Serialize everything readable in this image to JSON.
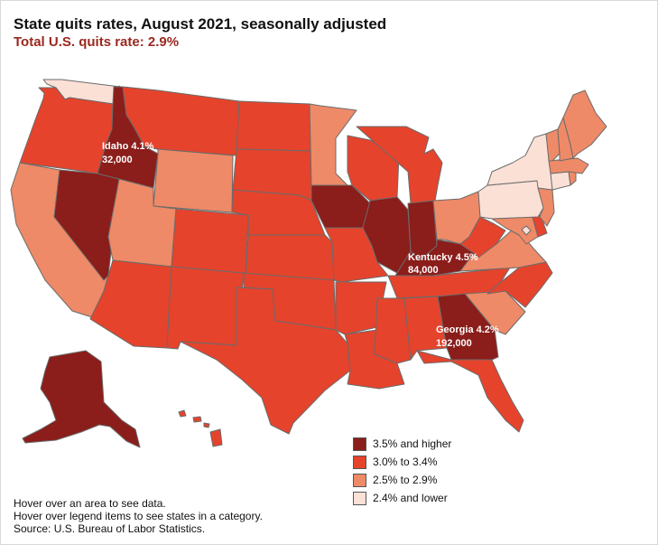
{
  "title": "State quits rates, August 2021, seasonally adjusted",
  "subtitle": "Total U.S. quits rate: 2.9%",
  "colors": {
    "high": "#8b1d1a",
    "mid_high": "#e5432c",
    "mid_low": "#ee8a67",
    "low": "#fbe0d6",
    "subtitle": "#9b2820"
  },
  "callouts": [
    {
      "state": "Idaho",
      "line1": "Idaho  4.1%",
      "line2": "32,000"
    },
    {
      "state": "Kentucky",
      "line1": "Kentucky 4.5%",
      "line2": "84,000"
    },
    {
      "state": "Georgia",
      "line1": "Georgia 4.2%",
      "line2": "192,000"
    }
  ],
  "legend": [
    {
      "label": "3.5% and higher",
      "color_key": "high"
    },
    {
      "label": "3.0% to 3.4%",
      "color_key": "mid_high"
    },
    {
      "label": "2.5% to 2.9%",
      "color_key": "mid_low"
    },
    {
      "label": "2.4% and lower",
      "color_key": "low"
    }
  ],
  "notes": [
    "Hover over an area to see data.",
    "Hover over legend items to see states in a category.",
    "Source: U.S. Bureau of Labor Statistics."
  ],
  "state_categories": {
    "Washington": "low",
    "Oregon": "mid_high",
    "California": "mid_low",
    "Nevada": "high",
    "Idaho": "high",
    "Montana": "mid_high",
    "Wyoming": "mid_low",
    "Utah": "mid_low",
    "Arizona": "mid_high",
    "Colorado": "mid_high",
    "New Mexico": "mid_high",
    "North Dakota": "mid_high",
    "South Dakota": "mid_high",
    "Nebraska": "mid_high",
    "Kansas": "mid_high",
    "Oklahoma": "mid_high",
    "Texas": "mid_high",
    "Minnesota": "mid_low",
    "Iowa": "high",
    "Missouri": "mid_high",
    "Arkansas": "mid_high",
    "Louisiana": "mid_high",
    "Wisconsin": "mid_high",
    "Illinois": "high",
    "Michigan": "mid_high",
    "Indiana": "high",
    "Ohio": "mid_low",
    "Kentucky": "high",
    "Tennessee": "mid_high",
    "Mississippi": "mid_high",
    "Alabama": "mid_high",
    "Georgia": "high",
    "Florida": "mid_high",
    "South Carolina": "mid_low",
    "North Carolina": "mid_high",
    "Virginia": "mid_low",
    "West Virginia": "mid_high",
    "Maryland": "mid_low",
    "Delaware": "mid_high",
    "Pennsylvania": "low",
    "New York": "low",
    "New Jersey": "mid_low",
    "Connecticut": "low",
    "Rhode Island": "mid_low",
    "Massachusetts": "mid_low",
    "Vermont": "mid_low",
    "New Hampshire": "mid_low",
    "Maine": "mid_low",
    "District of Columbia": "low",
    "Alaska": "high",
    "Hawaii": "mid_high"
  }
}
